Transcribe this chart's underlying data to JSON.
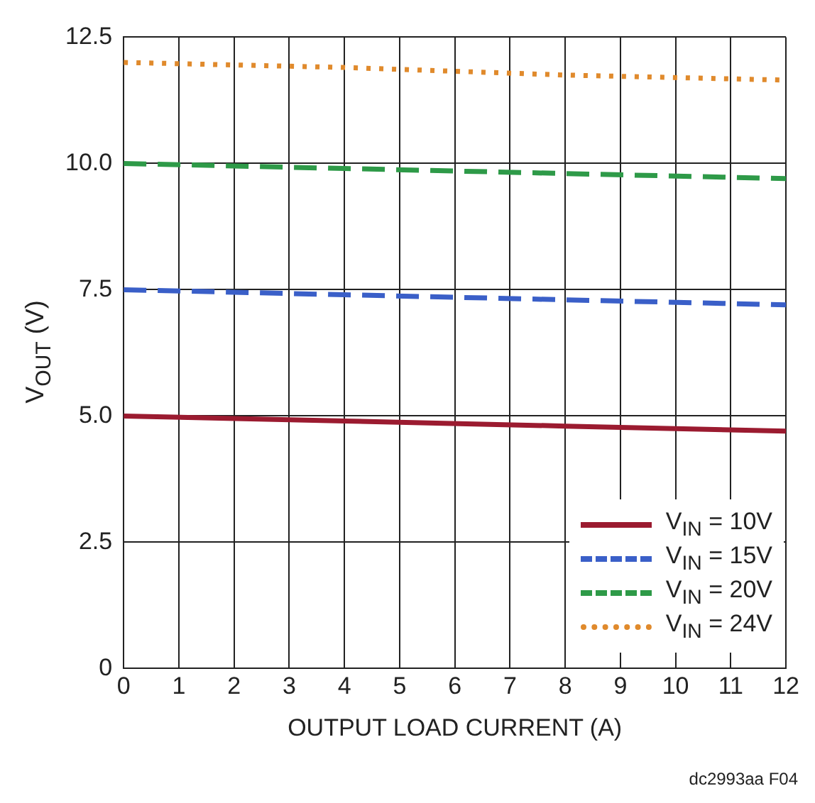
{
  "chart_data": {
    "type": "line",
    "xlabel": "OUTPUT LOAD CURRENT (A)",
    "ylabel": "V$_{OUT}$ (V)",
    "x": [
      0,
      4,
      8,
      12
    ],
    "series": [
      {
        "name": "V$_{IN}$ = 10V",
        "color": "#9b1b30",
        "line_style": "solid",
        "values": [
          5.0,
          4.9,
          4.8,
          4.7
        ]
      },
      {
        "name": "V$_{IN}$ = 15V",
        "color": "#3a5fc8",
        "line_style": "dashed",
        "values": [
          7.5,
          7.4,
          7.3,
          7.2
        ]
      },
      {
        "name": "V$_{IN}$ = 20V",
        "color": "#2e9a48",
        "line_style": "dashed",
        "values": [
          10.0,
          9.9,
          9.8,
          9.7
        ]
      },
      {
        "name": "V$_{IN}$ = 24V",
        "color": "#e08a2c",
        "line_style": "dotted",
        "values": [
          12.0,
          11.9,
          11.75,
          11.65
        ]
      }
    ],
    "xlim": [
      0,
      12
    ],
    "xticks": [
      0,
      1,
      2,
      3,
      4,
      5,
      6,
      7,
      8,
      9,
      10,
      11,
      12
    ],
    "ylim": [
      0,
      12.5
    ],
    "yticks": [
      0,
      {
        "value": 2.5,
        "label": "2.5"
      },
      {
        "value": 5,
        "label": "5.0"
      },
      {
        "value": 7.5,
        "label": "7.5"
      },
      {
        "value": 10,
        "label": "10.0"
      },
      {
        "value": 12.5,
        "label": "12.5"
      }
    ],
    "grid": true,
    "legend": "bottom right",
    "marker": "none",
    "annotations": [
      "dc2993aa F04"
    ]
  }
}
